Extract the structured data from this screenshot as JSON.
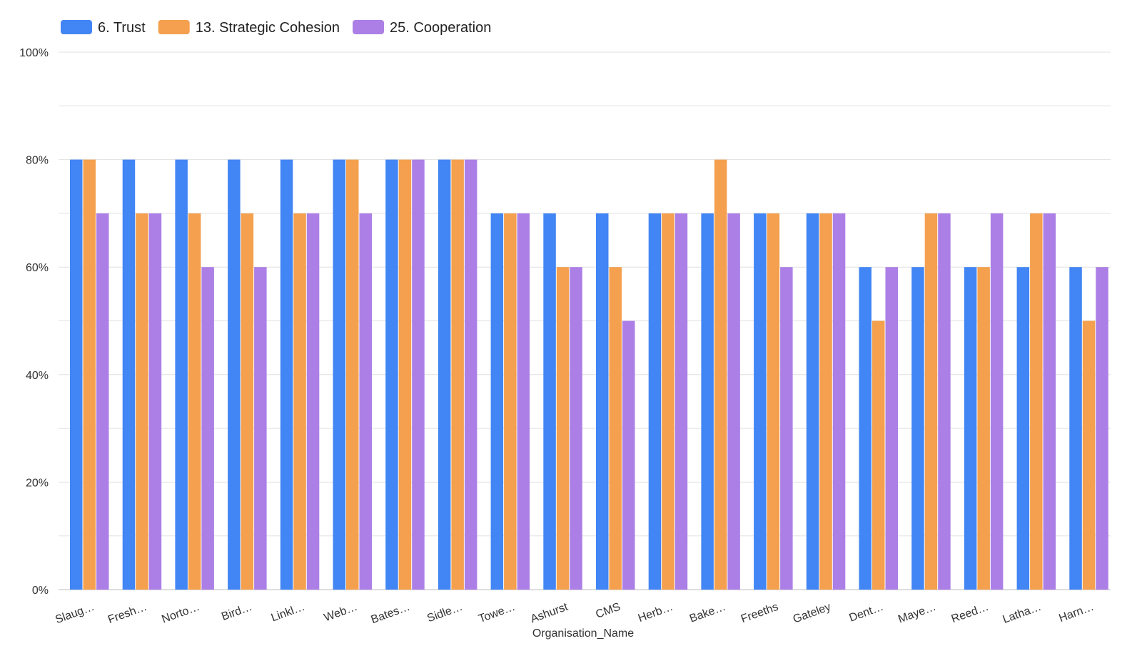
{
  "chart_data": {
    "type": "bar",
    "title": "",
    "xlabel": "Organisation_Name",
    "ylabel": "",
    "ylim": [
      0,
      100
    ],
    "grid": true,
    "legend_position": "top-left",
    "y_ticks": [
      "0%",
      "20%",
      "40%",
      "60%",
      "80%",
      "100%"
    ],
    "categories": [
      "Slaug…",
      "Fresh…",
      "Norto…",
      "Bird…",
      "Linkl…",
      "Web…",
      "Bates…",
      "Sidle…",
      "Towe…",
      "Ashurst",
      "CMS",
      "Herb…",
      "Bake…",
      "Freeths",
      "Gateley",
      "Dent…",
      "Maye…",
      "Reed…",
      "Latha…",
      "Harn…"
    ],
    "series": [
      {
        "name": "6. Trust",
        "color": "#4285F4",
        "values": [
          80,
          80,
          80,
          80,
          80,
          80,
          80,
          80,
          70,
          70,
          70,
          70,
          70,
          70,
          70,
          60,
          60,
          60,
          60,
          60
        ]
      },
      {
        "name": "13. Strategic Cohesion",
        "color": "#F4A04E",
        "values": [
          80,
          70,
          70,
          70,
          70,
          80,
          80,
          80,
          70,
          60,
          60,
          70,
          80,
          70,
          70,
          50,
          70,
          60,
          70,
          50
        ]
      },
      {
        "name": "25. Cooperation",
        "color": "#AC7FE6",
        "values": [
          70,
          70,
          60,
          60,
          70,
          70,
          80,
          80,
          70,
          60,
          50,
          70,
          70,
          60,
          70,
          60,
          70,
          70,
          70,
          60
        ]
      }
    ]
  }
}
